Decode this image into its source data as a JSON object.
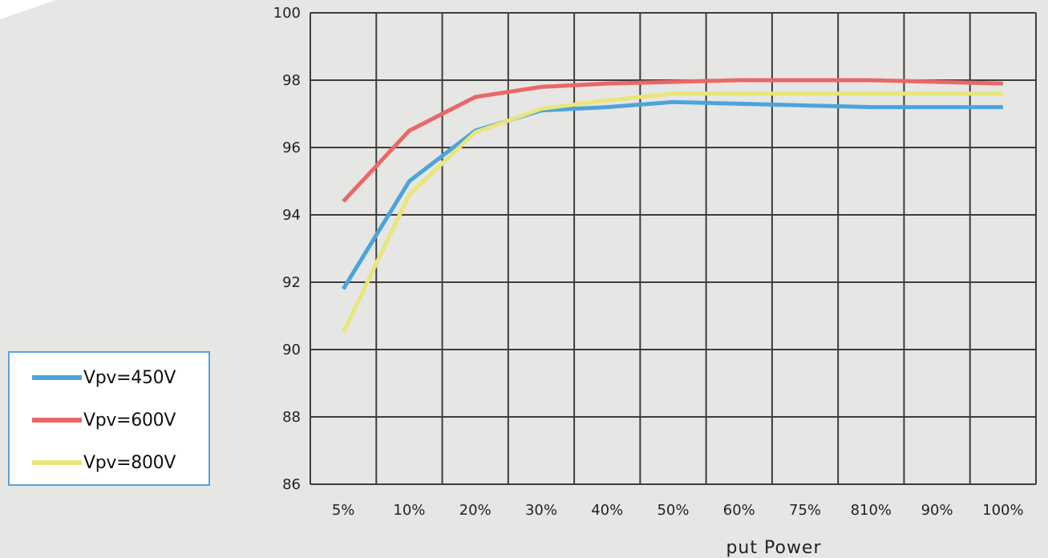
{
  "chart_data": {
    "type": "line",
    "categories": [
      "5%",
      "10%",
      "20%",
      "30%",
      "40%",
      "50%",
      "60%",
      "75%",
      "810%",
      "90%",
      "100%"
    ],
    "xlabel": "put Power",
    "ylabel": "",
    "ylim": [
      86,
      100
    ],
    "yticks": [
      100,
      98,
      96,
      94,
      92,
      90,
      88,
      86
    ],
    "grid": true,
    "legend_position": "left",
    "series": [
      {
        "name": "Vpv=450V",
        "color": "#4da3dc",
        "values": [
          91.8,
          95.0,
          96.5,
          97.1,
          97.2,
          97.35,
          97.3,
          97.25,
          97.2,
          97.2,
          97.2
        ]
      },
      {
        "name": "Vpv=600V",
        "color": "#e86868",
        "values": [
          94.4,
          96.5,
          97.5,
          97.8,
          97.9,
          97.95,
          98.0,
          98.0,
          98.0,
          97.95,
          97.9
        ]
      },
      {
        "name": "Vpv=800V",
        "color": "#e8e67a",
        "values": [
          90.5,
          94.6,
          96.45,
          97.15,
          97.4,
          97.6,
          97.6,
          97.6,
          97.6,
          97.6,
          97.6
        ]
      }
    ]
  },
  "legend": {
    "items": [
      "Vpv=450V",
      "Vpv=600V",
      "Vpv=800V"
    ]
  }
}
